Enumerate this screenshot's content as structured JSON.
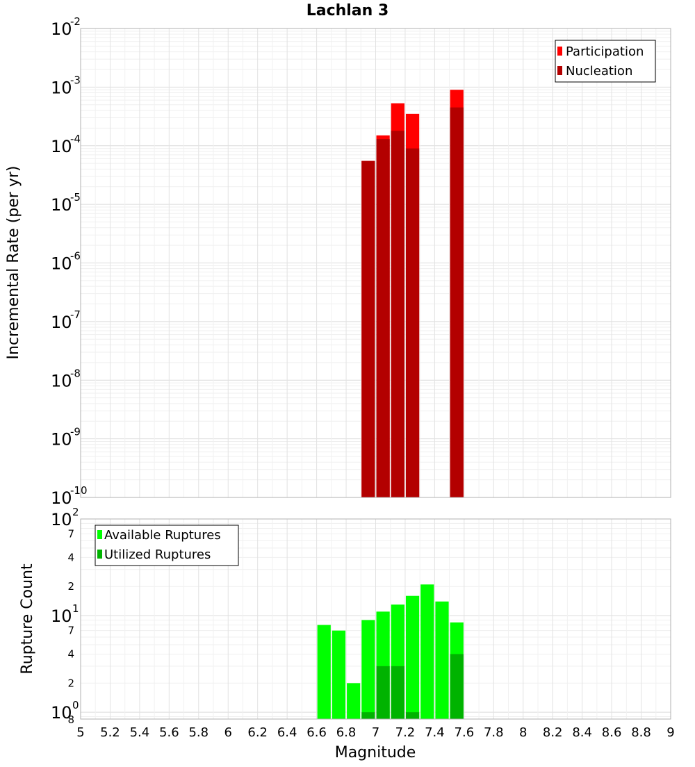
{
  "chart_data": [
    {
      "type": "bar",
      "title": "Lachlan 3",
      "xlabel": "",
      "ylabel": "Incremental Rate (per yr)",
      "yscale": "log",
      "ylim": [
        1e-10,
        0.01
      ],
      "xlim": [
        5,
        9
      ],
      "grid": true,
      "legend_position": "top-right",
      "y_tick_labels": [
        {
          "value": 0.01,
          "base": "10",
          "exp": "-2"
        },
        {
          "value": 0.001,
          "base": "10",
          "exp": "-3"
        },
        {
          "value": 0.0001,
          "base": "10",
          "exp": "-4"
        },
        {
          "value": 1e-05,
          "base": "10",
          "exp": "-5"
        },
        {
          "value": 1e-06,
          "base": "10",
          "exp": "-6"
        },
        {
          "value": 1e-07,
          "base": "10",
          "exp": "-7"
        },
        {
          "value": 1e-08,
          "base": "10",
          "exp": "-8"
        },
        {
          "value": 1e-09,
          "base": "10",
          "exp": "-9"
        },
        {
          "value": 1e-10,
          "base": "10",
          "exp": "-10"
        }
      ],
      "series": [
        {
          "name": "Participation",
          "color": "#ff0000",
          "x": [
            6.95,
            7.05,
            7.15,
            7.25,
            7.55
          ],
          "values": [
            5.5e-05,
            0.00015,
            0.00053,
            0.00035,
            0.0009
          ]
        },
        {
          "name": "Nucleation",
          "color": "#b30000",
          "x": [
            6.95,
            7.05,
            7.15,
            7.25,
            7.55
          ],
          "values": [
            5.5e-05,
            0.00013,
            0.00018,
            9e-05,
            0.00045
          ]
        }
      ]
    },
    {
      "type": "bar",
      "title": "",
      "xlabel": "Magnitude",
      "ylabel": "Rupture Count",
      "yscale": "log",
      "ylim": [
        0.85,
        100
      ],
      "xlim": [
        5,
        9
      ],
      "grid": true,
      "legend_position": "top-left",
      "x_tick_labels": [
        "5",
        "5.2",
        "5.4",
        "5.6",
        "5.8",
        "6",
        "6.2",
        "6.4",
        "6.6",
        "6.8",
        "7",
        "7.2",
        "7.4",
        "7.6",
        "7.8",
        "8",
        "8.2",
        "8.4",
        "8.6",
        "8.8",
        "9"
      ],
      "y_major_ticks": [
        {
          "value": 1,
          "base": "10",
          "exp": "0"
        },
        {
          "value": 10,
          "base": "10",
          "exp": "1"
        },
        {
          "value": 100,
          "base": "10",
          "exp": "2"
        }
      ],
      "y_minor_ticks": [
        {
          "value": 2,
          "label": "2"
        },
        {
          "value": 4,
          "label": "4"
        },
        {
          "value": 7,
          "label": "7"
        },
        {
          "value": 20,
          "label": "2"
        },
        {
          "value": 40,
          "label": "4"
        },
        {
          "value": 70,
          "label": "7"
        }
      ],
      "y_extra_label": {
        "value": 0.85,
        "label": "8"
      },
      "series": [
        {
          "name": "Available Ruptures",
          "color": "#00ff00",
          "x": [
            6.65,
            6.75,
            6.85,
            6.95,
            7.05,
            7.15,
            7.25,
            7.35,
            7.45,
            7.55
          ],
          "values": [
            8,
            7,
            2,
            9,
            11,
            13,
            16,
            21,
            14,
            8.5
          ]
        },
        {
          "name": "Utilized Ruptures",
          "color": "#00b300",
          "x": [
            6.95,
            7.05,
            7.15,
            7.25,
            7.55
          ],
          "values": [
            1,
            3,
            3,
            1,
            4
          ]
        }
      ]
    }
  ]
}
